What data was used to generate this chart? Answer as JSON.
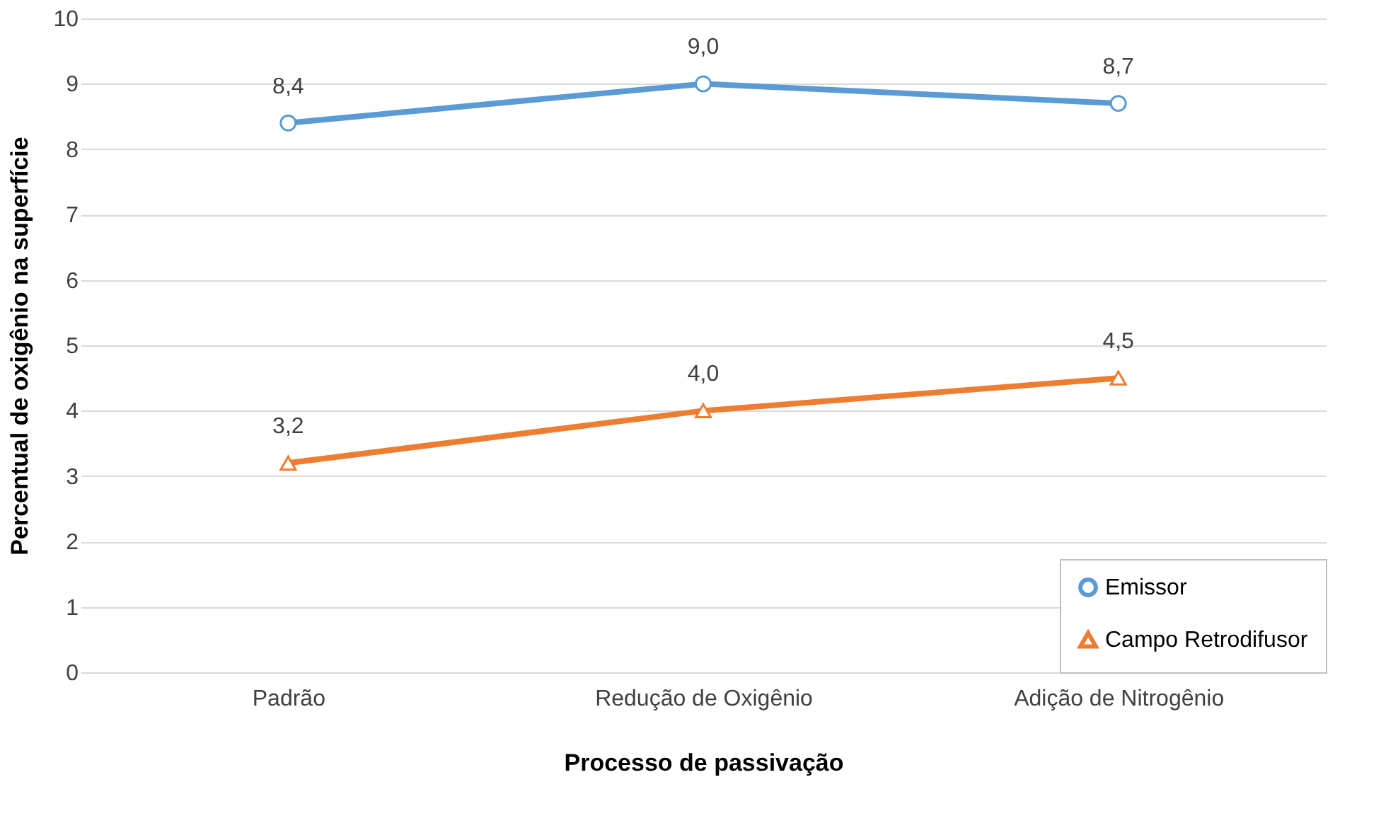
{
  "chart_data": {
    "type": "line",
    "xlabel": "Processo de passivação",
    "ylabel": "Percentual de oxigênio na superfície",
    "categories": [
      "Padrão",
      "Redução de Oxigênio",
      "Adição de Nitrogênio"
    ],
    "series": [
      {
        "name": "Emissor",
        "color": "#5b9bd5",
        "marker": "circle",
        "values": [
          8.4,
          9.0,
          8.7
        ],
        "value_labels": [
          "8,4",
          "9,0",
          "8,7"
        ]
      },
      {
        "name": "Campo Retrodifusor",
        "color": "#ed7d31",
        "marker": "triangle",
        "values": [
          3.2,
          4.0,
          4.5
        ],
        "value_labels": [
          "3,2",
          "4,0",
          "4,5"
        ]
      }
    ],
    "ylim": [
      0,
      10
    ],
    "yticks": [
      0,
      1,
      2,
      3,
      4,
      5,
      6,
      7,
      8,
      9,
      10
    ],
    "grid": "y",
    "legend": "bottom right"
  }
}
